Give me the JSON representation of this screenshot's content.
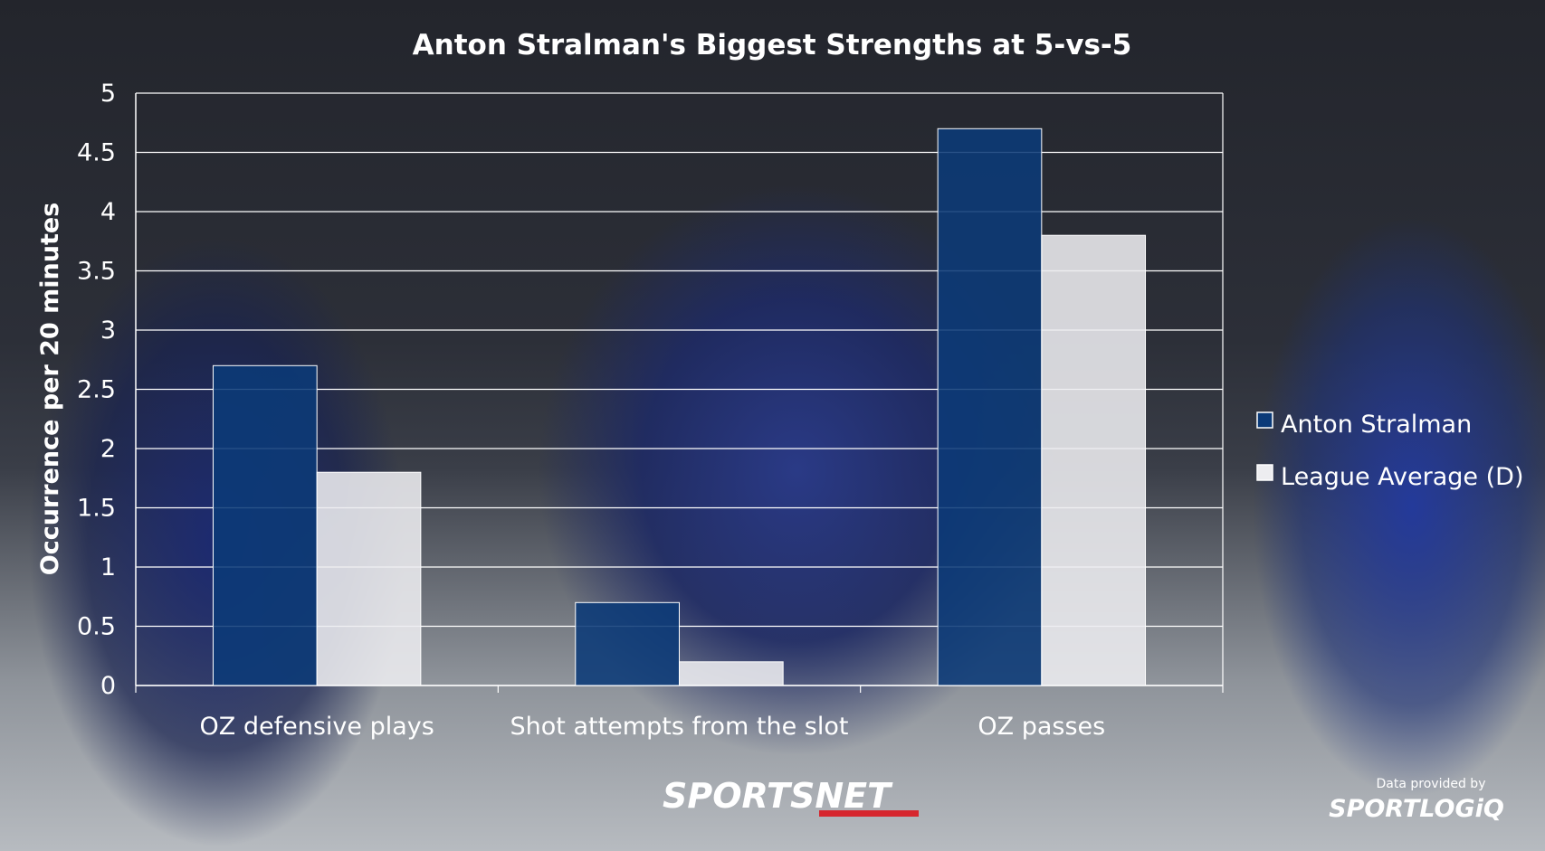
{
  "chart_data": {
    "type": "bar",
    "title": "Anton Stralman's Biggest Strengths at 5-vs-5",
    "xlabel": "",
    "ylabel": "Occurrence per 20 minutes",
    "categories": [
      "OZ defensive plays",
      "Shot attempts from the slot",
      "OZ passes"
    ],
    "series": [
      {
        "name": "Anton Stralman",
        "values": [
          2.7,
          0.7,
          4.7
        ],
        "color": "#0b3a78"
      },
      {
        "name": "League Average (D)",
        "values": [
          1.8,
          0.2,
          3.8
        ],
        "color": "#ededf0"
      }
    ],
    "ylim": [
      0,
      5
    ],
    "yticks": [
      "0",
      "0.5",
      "1",
      "1.5",
      "2",
      "2.5",
      "3",
      "3.5",
      "4",
      "4.5",
      "5"
    ],
    "grid": true,
    "legend_position": "right"
  },
  "branding": {
    "sportsnet": "SPORTSNET",
    "provider_note": "Data provided by",
    "sportlogiq": "SPORTLOGiQ"
  }
}
